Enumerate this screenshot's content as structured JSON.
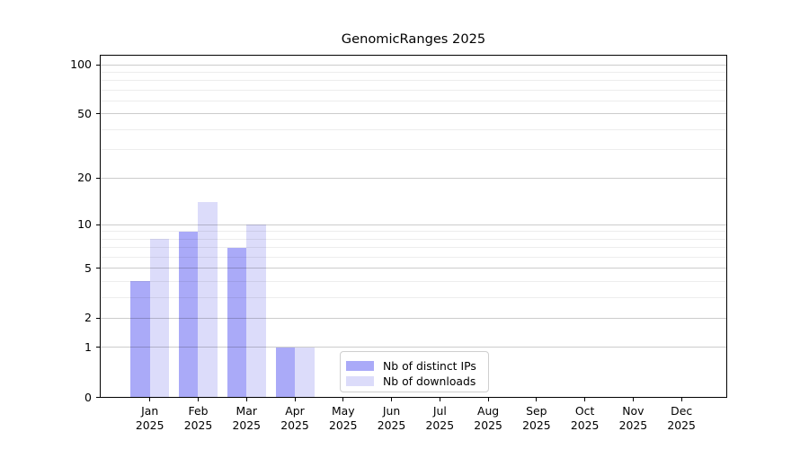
{
  "title": "GenomicRanges 2025",
  "chart_data": {
    "type": "bar",
    "title": "GenomicRanges 2025",
    "categories": [
      "Jan",
      "Feb",
      "Mar",
      "Apr",
      "May",
      "Jun",
      "Jul",
      "Aug",
      "Sep",
      "Oct",
      "Nov",
      "Dec"
    ],
    "x_tick_year": "2025",
    "series": [
      {
        "name": "Nb of distinct IPs",
        "color": "#aaaaf8",
        "values": [
          4,
          9,
          7,
          1,
          0,
          0,
          0,
          0,
          0,
          0,
          0,
          0
        ]
      },
      {
        "name": "Nb of downloads",
        "color": "#dcdcfa",
        "values": [
          8,
          14,
          10,
          1,
          0,
          0,
          0,
          0,
          0,
          0,
          0,
          0
        ]
      }
    ],
    "yscale": "log1p",
    "ylim": [
      0,
      115
    ],
    "yticks": [
      0,
      1,
      2,
      5,
      10,
      20,
      50,
      100
    ],
    "ytick_labels": [
      "0",
      "1",
      "2",
      "5",
      "10",
      "20",
      "50",
      "100"
    ],
    "minor_yticks": [
      3,
      4,
      6,
      7,
      8,
      9,
      30,
      40,
      60,
      70,
      80,
      90
    ],
    "grid": true,
    "legend_position": "lower center",
    "colors": {
      "major_grid": "rgba(0,0,0,0.20)",
      "minor_grid": "rgba(0,0,0,0.07)",
      "spine": "#000000",
      "text": "#000000"
    }
  }
}
